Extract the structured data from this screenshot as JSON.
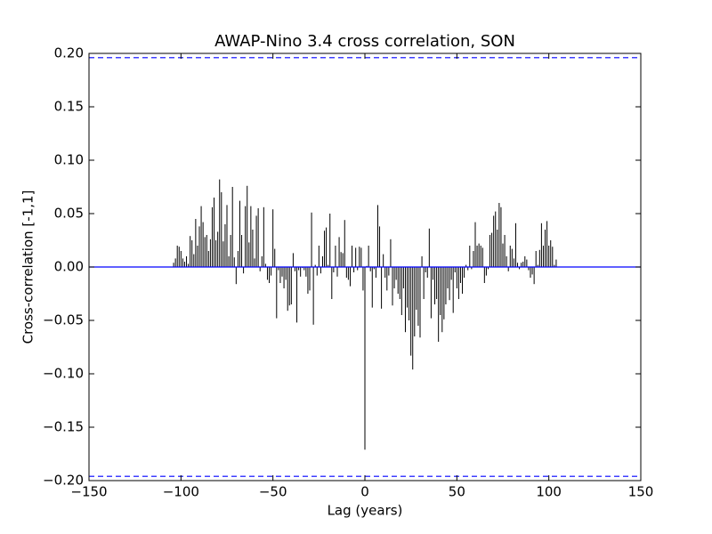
{
  "chart_data": {
    "type": "xcorr",
    "title": "AWAP-Nino 3.4 cross correlation, SON",
    "xlabel": "Lag (years)",
    "ylabel": "Cross-correlation [-1,1]",
    "bar_color": "#000000",
    "line_color": "#0000ff",
    "hlines": [
      0.196,
      -0.196
    ],
    "xlim": [
      -150,
      150
    ],
    "ylim": [
      -0.2,
      0.2
    ],
    "xticks": [
      {
        "value": -150,
        "label": "−150"
      },
      {
        "value": -100,
        "label": "−100"
      },
      {
        "value": -50,
        "label": "−50"
      },
      0,
      50,
      100,
      150
    ],
    "yticks": [
      {
        "value": -0.2,
        "label": "−0.20"
      },
      {
        "value": -0.15,
        "label": "−0.15"
      },
      {
        "value": -0.1,
        "label": "−0.10"
      },
      {
        "value": -0.05,
        "label": "−0.05"
      },
      {
        "value": 0,
        "label": "0.00"
      },
      {
        "value": 0.05,
        "label": "0.05"
      },
      {
        "value": 0.1,
        "label": "0.10"
      },
      {
        "value": 0.15,
        "label": "0.15"
      },
      {
        "value": 0.2,
        "label": "0.20"
      }
    ],
    "x": [
      -104,
      -103,
      -102,
      -101,
      -100,
      -99,
      -98,
      -97,
      -96,
      -95,
      -94,
      -93,
      -92,
      -91,
      -90,
      -89,
      -88,
      -87,
      -86,
      -85,
      -84,
      -83,
      -82,
      -81,
      -80,
      -79,
      -78,
      -77,
      -76,
      -75,
      -74,
      -73,
      -72,
      -71,
      -70,
      -69,
      -68,
      -67,
      -66,
      -65,
      -64,
      -63,
      -62,
      -61,
      -60,
      -59,
      -58,
      -57,
      -56,
      -55,
      -54,
      -53,
      -52,
      -51,
      -50,
      -49,
      -48,
      -47,
      -46,
      -45,
      -44,
      -43,
      -42,
      -41,
      -40,
      -39,
      -38,
      -37,
      -36,
      -35,
      -34,
      -33,
      -32,
      -31,
      -30,
      -29,
      -28,
      -27,
      -26,
      -25,
      -24,
      -23,
      -22,
      -21,
      -20,
      -19,
      -18,
      -17,
      -16,
      -15,
      -14,
      -13,
      -12,
      -11,
      -10,
      -9,
      -8,
      -7,
      -6,
      -5,
      -4,
      -3,
      -2,
      -1,
      0,
      1,
      2,
      3,
      4,
      5,
      6,
      7,
      8,
      9,
      10,
      11,
      12,
      13,
      14,
      15,
      16,
      17,
      18,
      19,
      20,
      21,
      22,
      23,
      24,
      25,
      26,
      27,
      28,
      29,
      30,
      31,
      32,
      33,
      34,
      35,
      36,
      37,
      38,
      39,
      40,
      41,
      42,
      43,
      44,
      45,
      46,
      47,
      48,
      49,
      50,
      51,
      52,
      53,
      54,
      55,
      56,
      57,
      58,
      59,
      60,
      61,
      62,
      63,
      64,
      65,
      66,
      67,
      68,
      69,
      70,
      71,
      72,
      73,
      74,
      75,
      76,
      77,
      78,
      79,
      80,
      81,
      82,
      83,
      84,
      85,
      86,
      87,
      88,
      89,
      90,
      91,
      92,
      93,
      94,
      95,
      96,
      97,
      98,
      99,
      100,
      101,
      102,
      103,
      104
    ],
    "values": [
      0.004,
      0.008,
      0.02,
      0.019,
      0.015,
      0.008,
      0.005,
      0.01,
      0.003,
      0.029,
      0.025,
      0.012,
      0.045,
      0.02,
      0.038,
      0.057,
      0.042,
      0.028,
      0.03,
      0.015,
      0.026,
      0.056,
      0.065,
      0.025,
      0.033,
      0.082,
      0.07,
      0.024,
      0.04,
      0.058,
      0.01,
      0.03,
      0.075,
      0.009,
      -0.016,
      0.015,
      0.062,
      0.03,
      -0.006,
      0.057,
      0.076,
      0.023,
      0.057,
      0.035,
      0.008,
      0.048,
      0.055,
      -0.004,
      0.01,
      0.056,
      0.003,
      -0.012,
      -0.015,
      -0.008,
      0.054,
      0.017,
      -0.048,
      -0.003,
      -0.015,
      -0.009,
      -0.02,
      -0.012,
      -0.041,
      -0.036,
      -0.035,
      0.013,
      -0.004,
      -0.052,
      -0.003,
      -0.009,
      -0.001,
      -0.003,
      -0.009,
      -0.025,
      -0.022,
      0.051,
      -0.054,
      0.002,
      -0.008,
      0.02,
      -0.006,
      0.01,
      0.034,
      0.037,
      0.002,
      0.05,
      -0.03,
      -0.005,
      0.02,
      -0.009,
      0.028,
      0.014,
      0.013,
      0.044,
      -0.01,
      -0.012,
      -0.018,
      0.02,
      -0.005,
      0.018,
      -0.003,
      0.019,
      0.018,
      -0.022,
      -0.171,
      0.001,
      0.02,
      -0.004,
      -0.038,
      -0.002,
      -0.01,
      0.058,
      0.038,
      -0.039,
      0.012,
      -0.01,
      -0.022,
      -0.008,
      0.026,
      -0.036,
      -0.02,
      -0.012,
      -0.025,
      -0.03,
      -0.045,
      -0.02,
      -0.061,
      -0.038,
      -0.05,
      -0.083,
      -0.096,
      -0.065,
      -0.04,
      -0.055,
      -0.066,
      0.01,
      -0.03,
      -0.005,
      -0.01,
      0.036,
      -0.048,
      -0.012,
      -0.035,
      -0.03,
      -0.07,
      -0.045,
      -0.061,
      -0.049,
      -0.035,
      -0.02,
      -0.031,
      -0.012,
      -0.043,
      -0.005,
      -0.02,
      -0.03,
      -0.015,
      -0.025,
      -0.01,
      0.002,
      -0.003,
      0.02,
      -0.002,
      0.015,
      0.042,
      0.02,
      0.022,
      0.02,
      0.018,
      -0.015,
      -0.008,
      -0.002,
      0.03,
      0.032,
      0.048,
      0.052,
      0.035,
      0.06,
      0.056,
      0.022,
      0.03,
      0.01,
      -0.004,
      0.02,
      0.017,
      0.008,
      0.041,
      0.004,
      -0.002,
      0.004,
      0.005,
      0.01,
      0.007,
      -0.003,
      -0.01,
      -0.007,
      -0.016,
      0.015,
      0.002,
      0.016,
      0.041,
      0.02,
      0.035,
      0.043,
      0.02,
      0.025,
      0.019,
      0.002,
      0.007
    ]
  }
}
